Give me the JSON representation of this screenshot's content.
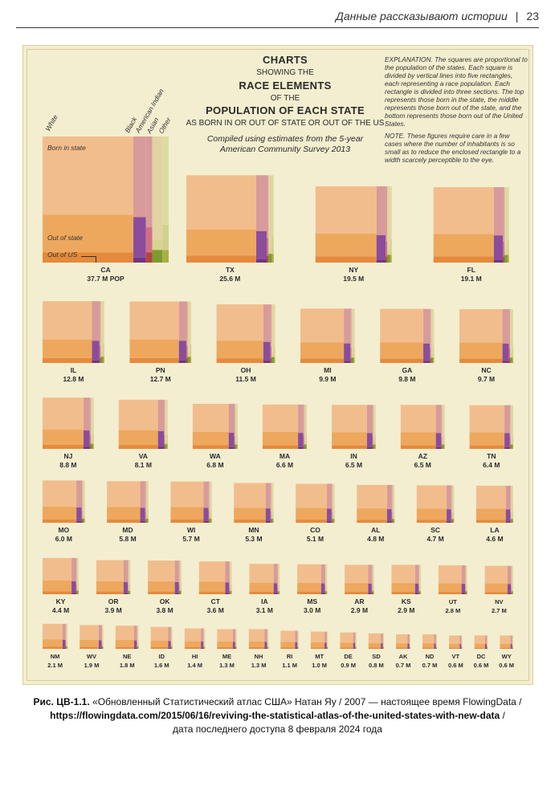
{
  "header": {
    "running_title": "Данные рассказывают истории",
    "separator": "|",
    "page_number": "23"
  },
  "figure": {
    "title_line1": "CHARTS",
    "title_line2": "SHOWING THE",
    "title_line3": "RACE ELEMENTS",
    "title_line4": "OF THE",
    "title_line5": "POPULATION OF EACH STATE",
    "title_line6": "AS BORN IN OR OUT OF STATE OR OUT OF THE US",
    "subtitle_line1": "Compiled using estimates from the 5-year",
    "subtitle_line2": "American Community Survey 2013",
    "explanation": "EXPLANATION. The squares are proportional to the population of the states. Each square is divided by vertical lines into five rectangles, each representing a race population. Each rectangle is divided into three sections. The top represents those born in the state, the middle represents those born out of the state, and the bottom represents those born out of the United States.",
    "note": "NOTE. These figures require care in a few cases where the number of inhabitants is so small as to reduce the enclosed rectangle to a width scarcely perceptible to the eye.",
    "race_labels": [
      "White",
      "Black",
      "American Indian",
      "Asian",
      "Other"
    ],
    "section_labels": {
      "born_in": "Born in state",
      "out_of_state": "Out of state",
      "out_of_us": "Out of US"
    },
    "colors": {
      "background": "#f3eed0",
      "white_in": "#f2bd8c",
      "white_out": "#eda85e",
      "white_us": "#e58a3c",
      "black_in": "#d89a9a",
      "black_out": "#8b4c9c",
      "black_us": "#6f3581",
      "ai_in": "#d89a9a",
      "ai_out": "#cf6f84",
      "ai_us": "#b1453a",
      "asian_in": "#e2d3a3",
      "asian_out": "#d8d48f",
      "asian_us": "#7e9a2e",
      "other_in": "#dcdca0",
      "other_out": "#d0d28a",
      "other_us": "#a8b042"
    }
  },
  "chart_data": {
    "type": "heatmap",
    "description_unit": "population (millions)",
    "states": [
      {
        "code": "CA",
        "pop": "37.7 M POP",
        "value": 37.7
      },
      {
        "code": "TX",
        "pop": "25.6 M",
        "value": 25.6
      },
      {
        "code": "NY",
        "pop": "19.5 M",
        "value": 19.5
      },
      {
        "code": "FL",
        "pop": "19.1 M",
        "value": 19.1
      },
      {
        "code": "IL",
        "pop": "12.8 M",
        "value": 12.8
      },
      {
        "code": "PN",
        "pop": "12.7 M",
        "value": 12.7
      },
      {
        "code": "OH",
        "pop": "11.5 M",
        "value": 11.5
      },
      {
        "code": "MI",
        "pop": "9.9 M",
        "value": 9.9
      },
      {
        "code": "GA",
        "pop": "9.8 M",
        "value": 9.8
      },
      {
        "code": "NC",
        "pop": "9.7 M",
        "value": 9.7
      },
      {
        "code": "NJ",
        "pop": "8.8 M",
        "value": 8.8
      },
      {
        "code": "VA",
        "pop": "8.1 M",
        "value": 8.1
      },
      {
        "code": "WA",
        "pop": "6.8 M",
        "value": 6.8
      },
      {
        "code": "MA",
        "pop": "6.6 M",
        "value": 6.6
      },
      {
        "code": "IN",
        "pop": "6.5 M",
        "value": 6.5
      },
      {
        "code": "AZ",
        "pop": "6.5 M",
        "value": 6.5
      },
      {
        "code": "TN",
        "pop": "6.4 M",
        "value": 6.4
      },
      {
        "code": "MO",
        "pop": "6.0 M",
        "value": 6.0
      },
      {
        "code": "MD",
        "pop": "5.8 M",
        "value": 5.8
      },
      {
        "code": "WI",
        "pop": "5.7 M",
        "value": 5.7
      },
      {
        "code": "MN",
        "pop": "5.3 M",
        "value": 5.3
      },
      {
        "code": "CO",
        "pop": "5.1 M",
        "value": 5.1
      },
      {
        "code": "AL",
        "pop": "4.8 M",
        "value": 4.8
      },
      {
        "code": "SC",
        "pop": "4.7 M",
        "value": 4.7
      },
      {
        "code": "LA",
        "pop": "4.6 M",
        "value": 4.6
      },
      {
        "code": "KY",
        "pop": "4.4 M",
        "value": 4.4
      },
      {
        "code": "OR",
        "pop": "3.9 M",
        "value": 3.9
      },
      {
        "code": "OK",
        "pop": "3.8 M",
        "value": 3.8
      },
      {
        "code": "CT",
        "pop": "3.6 M",
        "value": 3.6
      },
      {
        "code": "IA",
        "pop": "3.1 M",
        "value": 3.1
      },
      {
        "code": "MS",
        "pop": "3.0 M",
        "value": 3.0
      },
      {
        "code": "AR",
        "pop": "2.9 M",
        "value": 2.9
      },
      {
        "code": "KS",
        "pop": "2.9 M",
        "value": 2.9
      },
      {
        "code": "UT",
        "pop": "2.8 M",
        "value": 2.8
      },
      {
        "code": "NV",
        "pop": "2.7 M",
        "value": 2.7
      },
      {
        "code": "NM",
        "pop": "2.1 M",
        "value": 2.1
      },
      {
        "code": "WV",
        "pop": "1.9 M",
        "value": 1.9
      },
      {
        "code": "NE",
        "pop": "1.8 M",
        "value": 1.8
      },
      {
        "code": "ID",
        "pop": "1.6 M",
        "value": 1.6
      },
      {
        "code": "HI",
        "pop": "1.4 M",
        "value": 1.4
      },
      {
        "code": "ME",
        "pop": "1.3 M",
        "value": 1.3
      },
      {
        "code": "NH",
        "pop": "1.3 M",
        "value": 1.3
      },
      {
        "code": "RI",
        "pop": "1.1 M",
        "value": 1.1
      },
      {
        "code": "MT",
        "pop": "1.0 M",
        "value": 1.0
      },
      {
        "code": "DE",
        "pop": "0.9 M",
        "value": 0.9
      },
      {
        "code": "SD",
        "pop": "0.8 M",
        "value": 0.8
      },
      {
        "code": "AK",
        "pop": "0.7 M",
        "value": 0.7
      },
      {
        "code": "ND",
        "pop": "0.7 M",
        "value": 0.7
      },
      {
        "code": "VT",
        "pop": "0.6 M",
        "value": 0.6
      },
      {
        "code": "DC",
        "pop": "0.6 M",
        "value": 0.6
      },
      {
        "code": "WY",
        "pop": "0.6 M",
        "value": 0.6
      }
    ]
  },
  "caption": {
    "label": "Рис. ЦВ-1.1.",
    "text_line1": "«Обновленный Статистический атлас США» Натан Яу / 2007 — настоящее время FlowingData /",
    "url": "https://flowingdata.com/2015/06/16/reviving-the-statistical-atlas-of-the-united-states-with-new-data",
    "text_line2_suffix": " /",
    "text_line3": "дата последнего доступа 8 февраля 2024 года"
  }
}
